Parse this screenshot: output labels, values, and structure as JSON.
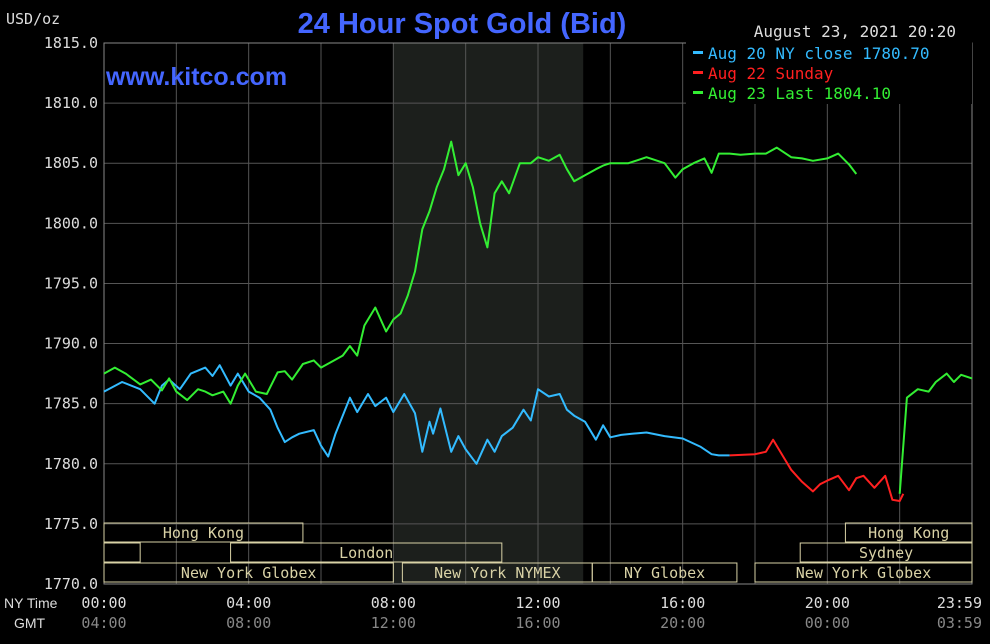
{
  "header": {
    "unit": "USD/oz",
    "title": "24 Hour Spot Gold (Bid)",
    "watermark": "www.kitco.com",
    "timestamp": "August 23, 2021 20:20"
  },
  "legend": [
    {
      "text": "Aug 20 NY close 1780.70",
      "color": "#33bbff"
    },
    {
      "text": "Aug 22 Sunday",
      "color": "#ff2020"
    },
    {
      "text": "Aug 23 Last 1804.10",
      "color": "#33ee33"
    }
  ],
  "colors": {
    "background": "#000000",
    "grid": "#555555",
    "title": "#4466ff",
    "text": "#dddddd",
    "session_shade": "#1c1f1c",
    "session_box": "#d9d2a6",
    "session_text": "#000000"
  },
  "axis_labels": {
    "ny_time": "NY Time",
    "gmt": "GMT"
  },
  "chart_data": {
    "type": "line",
    "x_unit": "hours from 00:00 NY time",
    "xlim": [
      0,
      24
    ],
    "ylim": [
      1770,
      1815
    ],
    "grid": true,
    "legend_position": "top-right",
    "y_ticks": [
      "1815.0",
      "1810.0",
      "1805.0",
      "1800.0",
      "1795.0",
      "1790.0",
      "1785.0",
      "1780.0",
      "1775.0",
      "1770.0"
    ],
    "x_ticks_ny": [
      "00:00",
      "04:00",
      "08:00",
      "12:00",
      "16:00",
      "20:00",
      "23:59"
    ],
    "x_ticks_gmt": [
      "04:00",
      "08:00",
      "12:00",
      "16:00",
      "20:00",
      "00:00",
      "03:59"
    ],
    "shaded_region": [
      8,
      13.25
    ],
    "sessions": [
      {
        "label": "Hong Kong",
        "start": 0,
        "end": 5.5,
        "row": 0
      },
      {
        "label": "",
        "start": 0,
        "end": 1,
        "row": 1
      },
      {
        "label": "London",
        "start": 3.5,
        "end": 11,
        "row": 1
      },
      {
        "label": "New York Globex",
        "start": 0,
        "end": 8,
        "row": 2
      },
      {
        "label": "New York NYMEX",
        "start": 8.25,
        "end": 13.5,
        "row": 2
      },
      {
        "label": "NY Globex",
        "start": 13.5,
        "end": 17.5,
        "row": 2
      },
      {
        "label": "Hong Kong",
        "start": 20.5,
        "end": 24,
        "row": 0
      },
      {
        "label": "Sydney",
        "start": 19.25,
        "end": 24,
        "row": 1
      },
      {
        "label": "New York Globex",
        "start": 18,
        "end": 24,
        "row": 2
      }
    ],
    "series": [
      {
        "name": "Aug 20 NY close 1780.70",
        "color": "#33bbff",
        "x": [
          0,
          0.5,
          1.0,
          1.4,
          1.6,
          1.8,
          2.1,
          2.4,
          2.8,
          3.0,
          3.2,
          3.5,
          3.7,
          4.0,
          4.3,
          4.6,
          4.8,
          5.0,
          5.2,
          5.4,
          5.8,
          6.0,
          6.2,
          6.4,
          6.6,
          6.8,
          7.0,
          7.3,
          7.5,
          7.8,
          8.0,
          8.3,
          8.6,
          8.8,
          9.0,
          9.1,
          9.3,
          9.6,
          9.8,
          10.0,
          10.3,
          10.6,
          10.8,
          11.0,
          11.3,
          11.6,
          11.8,
          12.0,
          12.3,
          12.6,
          12.8,
          13.0,
          13.3,
          13.6,
          13.8,
          14.0,
          14.3,
          14.6,
          15.0,
          15.5,
          16.0,
          16.5,
          16.8,
          17.0,
          17.3
        ],
        "y": [
          1786.0,
          1786.8,
          1786.2,
          1785.0,
          1786.5,
          1787.0,
          1786.2,
          1787.5,
          1788.0,
          1787.3,
          1788.2,
          1786.5,
          1787.5,
          1786.0,
          1785.5,
          1784.5,
          1783.0,
          1781.8,
          1782.2,
          1782.5,
          1782.8,
          1781.5,
          1780.6,
          1782.5,
          1784.0,
          1785.5,
          1784.3,
          1785.8,
          1784.8,
          1785.5,
          1784.3,
          1785.8,
          1784.2,
          1781.0,
          1783.5,
          1782.5,
          1784.6,
          1781.0,
          1782.3,
          1781.2,
          1780.0,
          1782.0,
          1781.0,
          1782.3,
          1783.0,
          1784.5,
          1783.6,
          1786.2,
          1785.6,
          1785.8,
          1784.5,
          1784.0,
          1783.5,
          1782.0,
          1783.2,
          1782.2,
          1782.4,
          1782.5,
          1782.6,
          1782.3,
          1782.1,
          1781.4,
          1780.8,
          1780.7,
          1780.7
        ]
      },
      {
        "name": "Aug 22 Sunday",
        "color": "#ff2020",
        "x": [
          17.3,
          18.0,
          18.3,
          18.5,
          18.8,
          19.0,
          19.3,
          19.6,
          19.8,
          20.0,
          20.3,
          20.6,
          20.8,
          21.0,
          21.3,
          21.6,
          21.8,
          22.0,
          22.1
        ],
        "y": [
          1780.7,
          1780.8,
          1781.0,
          1782.0,
          1780.5,
          1779.5,
          1778.5,
          1777.7,
          1778.3,
          1778.6,
          1779.0,
          1777.8,
          1778.8,
          1779.0,
          1778.0,
          1779.0,
          1777.0,
          1776.9,
          1777.5
        ]
      },
      {
        "name": "Aug 23 Last 1804.10",
        "color": "#33ee33",
        "x": [
          0,
          0.3,
          0.6,
          1.0,
          1.3,
          1.6,
          1.8,
          2.0,
          2.3,
          2.6,
          2.8,
          3.0,
          3.3,
          3.5,
          3.7,
          3.9,
          4.2,
          4.5,
          4.8,
          5.0,
          5.2,
          5.5,
          5.8,
          6.0,
          6.3,
          6.6,
          6.8,
          7.0,
          7.2,
          7.5,
          7.8,
          8.0,
          8.2,
          8.4,
          8.6,
          8.8,
          9.0,
          9.2,
          9.4,
          9.6,
          9.8,
          10.0,
          10.2,
          10.4,
          10.6,
          10.8,
          11.0,
          11.2,
          11.5,
          11.8,
          12.0,
          12.3,
          12.6,
          12.8,
          13.0,
          13.3,
          13.6,
          13.8,
          14.0,
          14.5,
          15.0,
          15.5,
          15.8,
          16.0,
          16.3,
          16.6,
          16.8,
          17.0,
          17.3,
          17.6,
          18.0,
          18.3,
          18.6,
          19.0,
          19.3,
          19.6,
          20.0,
          20.3,
          20.6,
          20.8,
          21.0,
          21.3,
          21.6,
          21.8,
          22.0,
          22.3,
          22.6,
          23.0,
          23.3,
          23.6,
          24.0
        ],
        "y": [
          1787.5,
          1788.0,
          1787.5,
          1786.6,
          1787.0,
          1786.1,
          1787.1,
          1786.0,
          1785.3,
          1786.2,
          1786.0,
          1785.7,
          1786.0,
          1785.0,
          1786.5,
          1787.5,
          1786.0,
          1785.8,
          1787.6,
          1787.7,
          1787.0,
          1788.3,
          1788.6,
          1788.0,
          1788.5,
          1789.0,
          1789.8,
          1789.0,
          1791.5,
          1793.0,
          1791.0,
          1792.0,
          1792.5,
          1794.0,
          1796.0,
          1799.5,
          1801.0,
          1803.0,
          1804.5,
          1806.8,
          1804.0,
          1805.0,
          1803.0,
          1800.0,
          1798.0,
          1802.5,
          1803.5,
          1802.5,
          1805.0,
          1805.0,
          1805.5,
          1805.2,
          1805.7,
          1804.5,
          1803.5,
          1804.0,
          1804.5,
          1804.8,
          1805.0,
          1805.0,
          1805.5,
          1805.0,
          1803.8,
          1804.5,
          1805.0,
          1805.4,
          1804.2,
          1805.8,
          1805.8,
          1805.7,
          1805.8,
          1805.8,
          1806.3,
          1805.5,
          1805.4,
          1805.2,
          1805.4,
          1805.8,
          1804.9,
          1804.1,
          null,
          null,
          null,
          null,
          null,
          null,
          null,
          null,
          null,
          null,
          null
        ],
        "continuation_x": [
          22.0,
          22.2,
          22.5,
          22.8,
          23.0,
          23.3,
          23.5,
          23.7,
          24.0
        ],
        "continuation_y": [
          1777.5,
          1785.5,
          1786.2,
          1786.0,
          1786.8,
          1787.5,
          1786.8,
          1787.4,
          1787.1
        ]
      }
    ]
  }
}
